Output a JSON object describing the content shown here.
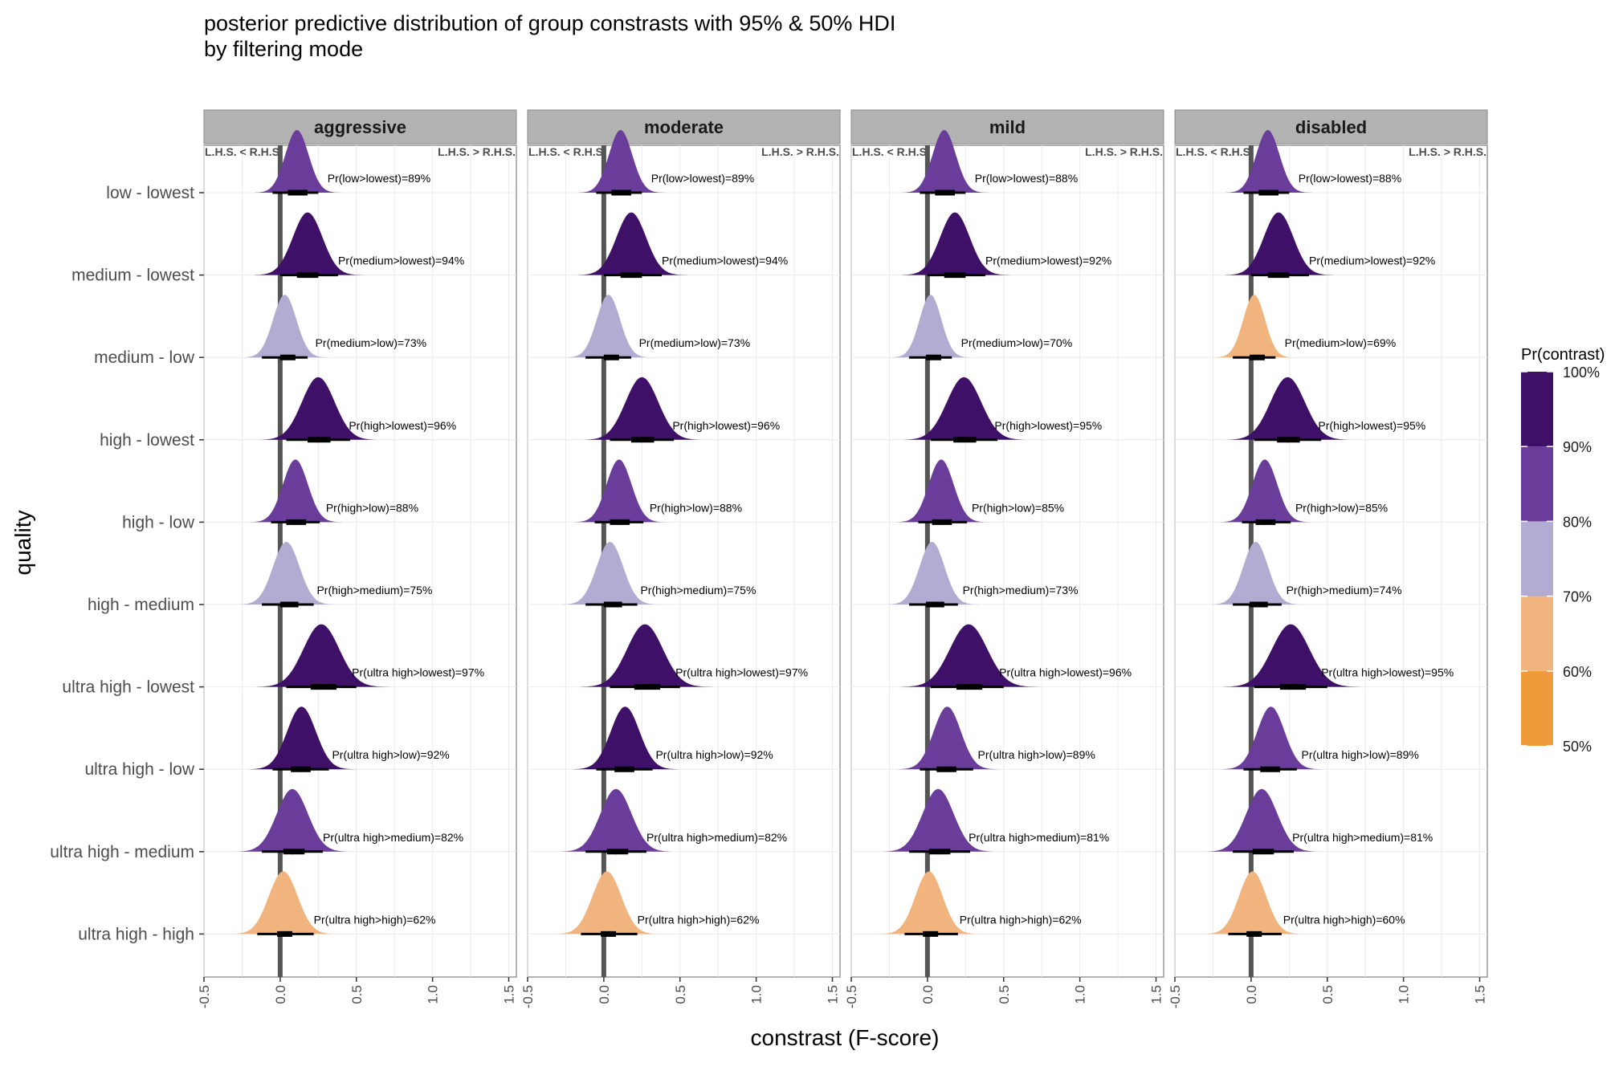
{
  "title_line1": "posterior predictive distribution of group constrasts with 95% & 50% HDI",
  "title_line2": "by filtering mode",
  "xlabel": "constrast (F-score)",
  "ylabel": "quality",
  "legend": {
    "title": "Pr(contrast)",
    "ticks": [
      "50%",
      "60%",
      "70%",
      "80%",
      "90%",
      "100%"
    ],
    "bins": [
      {
        "from": 0.5,
        "to": 0.6,
        "color": "#ef9a3b"
      },
      {
        "from": 0.6,
        "to": 0.7,
        "color": "#f2b47e"
      },
      {
        "from": 0.7,
        "to": 0.8,
        "color": "#b2abd2"
      },
      {
        "from": 0.8,
        "to": 0.9,
        "color": "#6a3d9a"
      },
      {
        "from": 0.9,
        "to": 1.0,
        "color": "#3f1067"
      }
    ]
  },
  "side_labels": {
    "left": "L.H.S. < R.H.S.",
    "right": "L.H.S. > R.H.S."
  },
  "chart_data": {
    "type": "ridgeline-density",
    "facets": [
      "aggressive",
      "moderate",
      "mild",
      "disabled"
    ],
    "contrasts": [
      "low - lowest",
      "medium - lowest",
      "medium - low",
      "high - lowest",
      "high - low",
      "high - medium",
      "ultra high - lowest",
      "ultra high - low",
      "ultra high - medium",
      "ultra high - high"
    ],
    "xlim": [
      -0.5,
      1.55
    ],
    "x_ticks": [
      -0.5,
      0.0,
      0.5,
      1.0,
      1.5
    ],
    "x_tick_labels": [
      "-0.5",
      "0.0",
      "0.5",
      "1.0",
      "1.5"
    ],
    "reference_line_x": 0,
    "annotations": {
      "aggressive": [
        "Pr(low>lowest)=89%",
        "Pr(medium>lowest)=94%",
        "Pr(medium>low)=73%",
        "Pr(high>lowest)=96%",
        "Pr(high>low)=88%",
        "Pr(high>medium)=75%",
        "Pr(ultra high>lowest)=97%",
        "Pr(ultra high>low)=92%",
        "Pr(ultra high>medium)=82%",
        "Pr(ultra high>high)=62%"
      ],
      "moderate": [
        "Pr(low>lowest)=89%",
        "Pr(medium>lowest)=94%",
        "Pr(medium>low)=73%",
        "Pr(high>lowest)=96%",
        "Pr(high>low)=88%",
        "Pr(high>medium)=75%",
        "Pr(ultra high>lowest)=97%",
        "Pr(ultra high>low)=92%",
        "Pr(ultra high>medium)=82%",
        "Pr(ultra high>high)=62%"
      ],
      "mild": [
        "Pr(low>lowest)=88%",
        "Pr(medium>lowest)=92%",
        "Pr(medium>low)=70%",
        "Pr(high>lowest)=95%",
        "Pr(high>low)=85%",
        "Pr(high>medium)=73%",
        "Pr(ultra high>lowest)=96%",
        "Pr(ultra high>low)=89%",
        "Pr(ultra high>medium)=81%",
        "Pr(ultra high>high)=62%"
      ],
      "disabled": [
        "Pr(low>lowest)=88%",
        "Pr(medium>lowest)=92%",
        "Pr(medium>low)=69%",
        "Pr(high>lowest)=95%",
        "Pr(high>low)=85%",
        "Pr(high>medium)=74%",
        "Pr(ultra high>lowest)=95%",
        "Pr(ultra high>low)=89%",
        "Pr(ultra high>medium)=81%",
        "Pr(ultra high>high)=60%"
      ]
    },
    "probabilities": {
      "aggressive": [
        0.89,
        0.94,
        0.73,
        0.96,
        0.88,
        0.75,
        0.97,
        0.92,
        0.82,
        0.62
      ],
      "moderate": [
        0.89,
        0.94,
        0.73,
        0.96,
        0.88,
        0.75,
        0.97,
        0.92,
        0.82,
        0.62
      ],
      "mild": [
        0.88,
        0.92,
        0.7,
        0.95,
        0.85,
        0.73,
        0.96,
        0.89,
        0.81,
        0.62
      ],
      "disabled": [
        0.88,
        0.92,
        0.69,
        0.95,
        0.85,
        0.74,
        0.95,
        0.89,
        0.81,
        0.6
      ]
    },
    "modes": {
      "aggressive": [
        0.11,
        0.18,
        0.03,
        0.25,
        0.1,
        0.04,
        0.27,
        0.14,
        0.08,
        0.02
      ],
      "moderate": [
        0.11,
        0.18,
        0.03,
        0.25,
        0.1,
        0.04,
        0.27,
        0.14,
        0.08,
        0.02
      ],
      "mild": [
        0.11,
        0.18,
        0.02,
        0.24,
        0.09,
        0.03,
        0.27,
        0.13,
        0.07,
        0.01
      ],
      "disabled": [
        0.11,
        0.18,
        0.02,
        0.24,
        0.09,
        0.03,
        0.26,
        0.13,
        0.07,
        0.01
      ]
    },
    "hdi95": {
      "aggressive": [
        [
          -0.05,
          0.25
        ],
        [
          0.0,
          0.38
        ],
        [
          -0.12,
          0.18
        ],
        [
          0.04,
          0.46
        ],
        [
          -0.06,
          0.26
        ],
        [
          -0.12,
          0.22
        ],
        [
          0.04,
          0.5
        ],
        [
          -0.05,
          0.32
        ],
        [
          -0.12,
          0.28
        ],
        [
          -0.15,
          0.22
        ]
      ],
      "moderate": [
        [
          -0.05,
          0.25
        ],
        [
          0.0,
          0.38
        ],
        [
          -0.12,
          0.18
        ],
        [
          0.04,
          0.46
        ],
        [
          -0.06,
          0.26
        ],
        [
          -0.12,
          0.22
        ],
        [
          0.04,
          0.5
        ],
        [
          -0.05,
          0.32
        ],
        [
          -0.12,
          0.28
        ],
        [
          -0.15,
          0.22
        ]
      ],
      "mild": [
        [
          -0.05,
          0.25
        ],
        [
          0.0,
          0.38
        ],
        [
          -0.12,
          0.16
        ],
        [
          0.02,
          0.46
        ],
        [
          -0.06,
          0.26
        ],
        [
          -0.12,
          0.2
        ],
        [
          0.02,
          0.5
        ],
        [
          -0.05,
          0.3
        ],
        [
          -0.12,
          0.28
        ],
        [
          -0.15,
          0.2
        ]
      ],
      "disabled": [
        [
          -0.05,
          0.25
        ],
        [
          0.0,
          0.38
        ],
        [
          -0.12,
          0.16
        ],
        [
          0.02,
          0.46
        ],
        [
          -0.06,
          0.26
        ],
        [
          -0.12,
          0.2
        ],
        [
          0.02,
          0.5
        ],
        [
          -0.05,
          0.3
        ],
        [
          -0.12,
          0.28
        ],
        [
          -0.15,
          0.2
        ]
      ]
    },
    "hdi50": {
      "aggressive": [
        [
          0.05,
          0.18
        ],
        [
          0.11,
          0.25
        ],
        [
          0.0,
          0.1
        ],
        [
          0.18,
          0.33
        ],
        [
          0.04,
          0.17
        ],
        [
          0.0,
          0.12
        ],
        [
          0.2,
          0.37
        ],
        [
          0.07,
          0.2
        ],
        [
          0.02,
          0.16
        ],
        [
          -0.02,
          0.08
        ]
      ],
      "moderate": [
        [
          0.05,
          0.18
        ],
        [
          0.11,
          0.25
        ],
        [
          0.0,
          0.1
        ],
        [
          0.18,
          0.33
        ],
        [
          0.04,
          0.17
        ],
        [
          0.0,
          0.12
        ],
        [
          0.2,
          0.37
        ],
        [
          0.07,
          0.2
        ],
        [
          0.02,
          0.16
        ],
        [
          -0.02,
          0.08
        ]
      ],
      "mild": [
        [
          0.05,
          0.18
        ],
        [
          0.11,
          0.25
        ],
        [
          -0.01,
          0.09
        ],
        [
          0.17,
          0.32
        ],
        [
          0.03,
          0.16
        ],
        [
          -0.01,
          0.11
        ],
        [
          0.19,
          0.36
        ],
        [
          0.06,
          0.19
        ],
        [
          0.01,
          0.15
        ],
        [
          -0.03,
          0.07
        ]
      ],
      "disabled": [
        [
          0.05,
          0.18
        ],
        [
          0.11,
          0.25
        ],
        [
          -0.01,
          0.09
        ],
        [
          0.17,
          0.32
        ],
        [
          0.03,
          0.16
        ],
        [
          -0.01,
          0.11
        ],
        [
          0.19,
          0.36
        ],
        [
          0.06,
          0.19
        ],
        [
          0.01,
          0.15
        ],
        [
          -0.03,
          0.07
        ]
      ]
    }
  }
}
